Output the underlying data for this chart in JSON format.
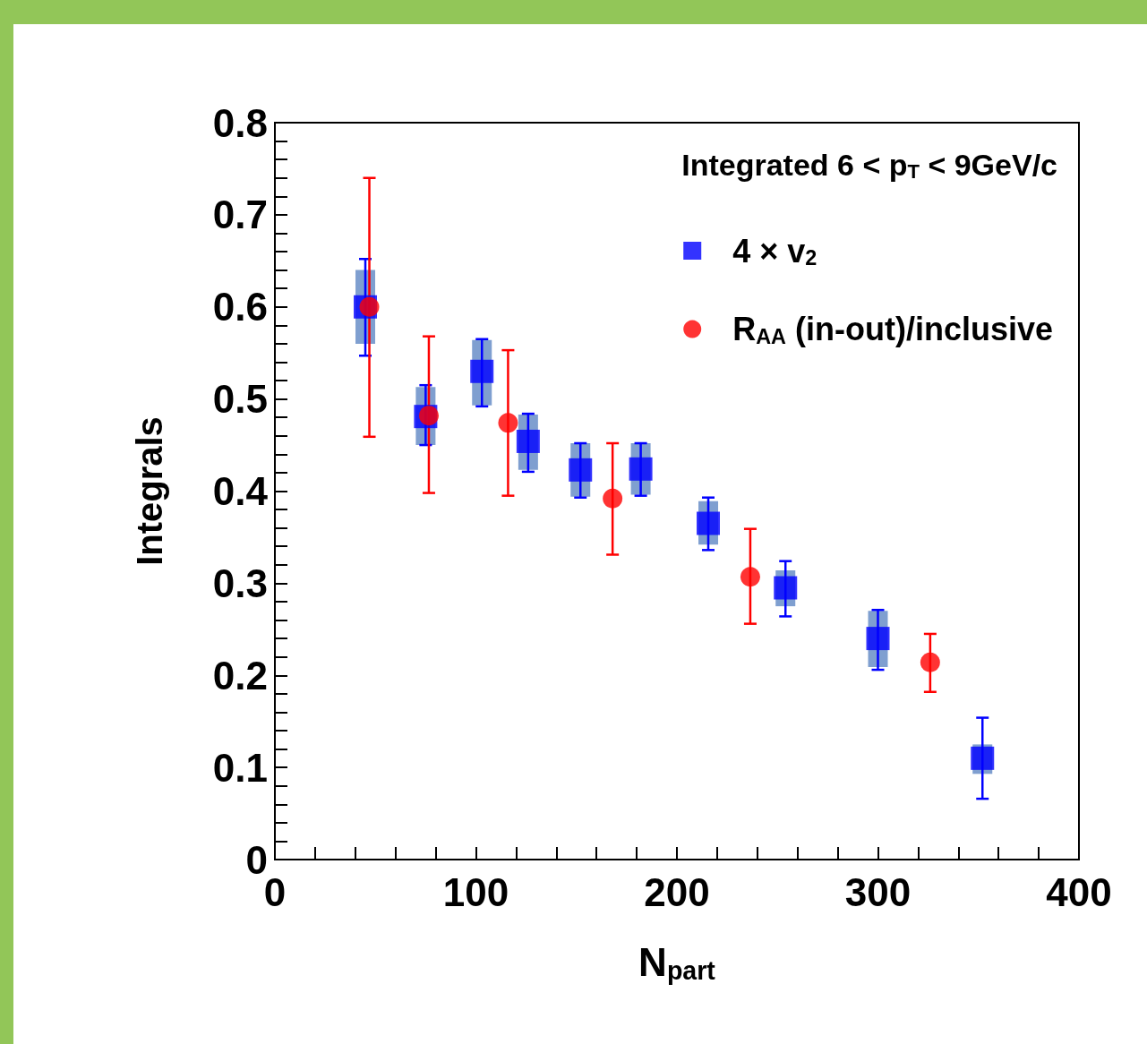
{
  "chart_data": {
    "type": "scatter",
    "xlabel": "N$_{part}$",
    "ylabel": "Integrals",
    "annotations": [
      "Integrated 6 < p$_{T}$ < 9GeV/c"
    ],
    "xlim": [
      0,
      400
    ],
    "ylim": [
      0,
      0.8
    ],
    "xticks": [
      0,
      {
        "value": 20,
        "label": null
      },
      {
        "value": 40,
        "label": null
      },
      {
        "value": 60,
        "label": null
      },
      {
        "value": 80,
        "label": null
      },
      100,
      {
        "value": 120,
        "label": null
      },
      {
        "value": 140,
        "label": null
      },
      {
        "value": 160,
        "label": null
      },
      {
        "value": 180,
        "label": null
      },
      200,
      {
        "value": 220,
        "label": null
      },
      {
        "value": 240,
        "label": null
      },
      {
        "value": 260,
        "label": null
      },
      {
        "value": 280,
        "label": null
      },
      300,
      {
        "value": 320,
        "label": null
      },
      {
        "value": 340,
        "label": null
      },
      {
        "value": 360,
        "label": null
      },
      {
        "value": 380,
        "label": null
      },
      400
    ],
    "yticks": [
      0,
      {
        "value": 0.02,
        "label": null
      },
      {
        "value": 0.04,
        "label": null
      },
      {
        "value": 0.06,
        "label": null
      },
      {
        "value": 0.08,
        "label": null
      },
      0.1,
      {
        "value": 0.12,
        "label": null
      },
      {
        "value": 0.14,
        "label": null
      },
      {
        "value": 0.16,
        "label": null
      },
      {
        "value": 0.18,
        "label": null
      },
      0.2,
      {
        "value": 0.22,
        "label": null
      },
      {
        "value": 0.24,
        "label": null
      },
      {
        "value": 0.26,
        "label": null
      },
      {
        "value": 0.28,
        "label": null
      },
      0.3,
      {
        "value": 0.32,
        "label": null
      },
      {
        "value": 0.34,
        "label": null
      },
      {
        "value": 0.36,
        "label": null
      },
      {
        "value": 0.38,
        "label": null
      },
      0.4,
      {
        "value": 0.42,
        "label": null
      },
      {
        "value": 0.44,
        "label": null
      },
      {
        "value": 0.46,
        "label": null
      },
      {
        "value": 0.48,
        "label": null
      },
      0.5,
      {
        "value": 0.52,
        "label": null
      },
      {
        "value": 0.54,
        "label": null
      },
      {
        "value": 0.56,
        "label": null
      },
      {
        "value": 0.58,
        "label": null
      },
      0.6,
      {
        "value": 0.62,
        "label": null
      },
      {
        "value": 0.64,
        "label": null
      },
      {
        "value": 0.66,
        "label": null
      },
      {
        "value": 0.68,
        "label": null
      },
      0.7,
      {
        "value": 0.72,
        "label": null
      },
      {
        "value": 0.74,
        "label": null
      },
      {
        "value": 0.76,
        "label": null
      },
      {
        "value": 0.78,
        "label": null
      },
      0.8
    ],
    "grid": false,
    "legend": "top right",
    "series": [
      {
        "type": "bar",
        "color": "#7f9fd0",
        "x": [
          45,
          75,
          103,
          126,
          152,
          182,
          215.6,
          254,
          300,
          352
        ],
        "base": [
          0.56,
          0.45,
          0.493,
          0.423,
          0.394,
          0.396,
          0.342,
          0.275,
          0.209,
          0.093
        ],
        "values": [
          0.08,
          0.063,
          0.071,
          0.06,
          0.058,
          0.056,
          0.047,
          0.039,
          0.061,
          0.032
        ]
      },
      {
        "name": "4 × v$_{2}$",
        "color": "#0000ff",
        "marker": "square",
        "x": [
          45,
          75,
          103,
          126,
          152,
          182,
          215.6,
          254,
          300,
          352
        ],
        "values": [
          0.6,
          0.481,
          0.53,
          0.454,
          0.423,
          0.424,
          0.365,
          0.295,
          0.24,
          0.11
        ],
        "errors": [
          [
            0.547,
            0.652
          ],
          [
            0.45,
            0.515
          ],
          [
            0.492,
            0.565
          ],
          [
            0.421,
            0.484
          ],
          [
            0.393,
            0.452
          ],
          [
            0.395,
            0.452
          ],
          [
            0.336,
            0.393
          ],
          [
            0.264,
            0.324
          ],
          [
            0.206,
            0.271
          ],
          [
            0.066,
            0.154
          ]
        ]
      },
      {
        "name": "R$_{AA}$ (in-out)/inclusive",
        "color": "#ff0000",
        "marker": "circle",
        "x": [
          47,
          76.6,
          116,
          168,
          236.5,
          326
        ],
        "values": [
          0.6,
          0.482,
          0.474,
          0.392,
          0.307,
          0.214
        ],
        "errors": [
          [
            0.459,
            0.74
          ],
          [
            0.398,
            0.568
          ],
          [
            0.395,
            0.553
          ],
          [
            0.331,
            0.452
          ],
          [
            0.256,
            0.359
          ],
          [
            0.182,
            0.245
          ]
        ]
      }
    ]
  }
}
